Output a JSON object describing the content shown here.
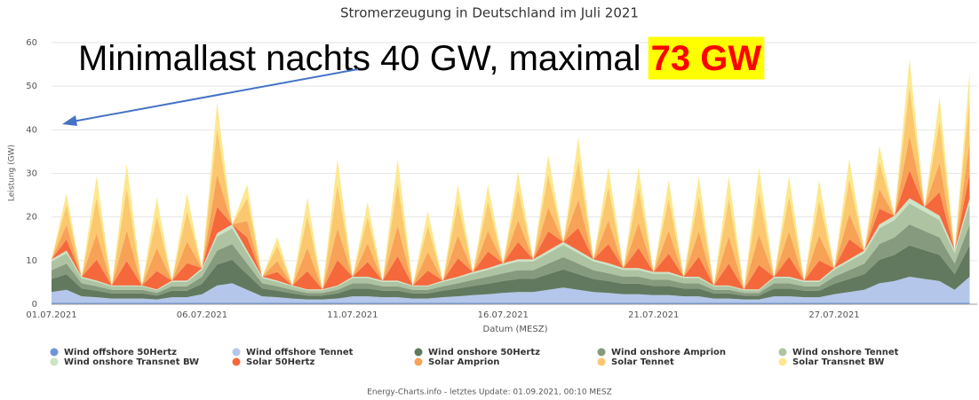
{
  "chart_data": {
    "type": "stacked_area",
    "title": "Stromerzeugung in Deutschland im Juli 2021",
    "y_label": "Leistung (GW)",
    "x_label": "Datum (MESZ)",
    "source": "Energy-Charts.info - letztes Update: 01.09.2021, 00:10 MESZ",
    "annotation": {
      "text": "Minimallast nachts 40 GW, maximal ",
      "highlight": "73 GW"
    },
    "ylim": [
      0,
      60
    ],
    "yticks": [
      0,
      10,
      20,
      30,
      40,
      50,
      60
    ],
    "grid": true,
    "legend": "bottom",
    "categories": [
      "01.07.2021",
      null,
      null,
      null,
      null,
      null,
      null,
      null,
      null,
      null,
      "06.07.2021",
      null,
      null,
      null,
      null,
      null,
      null,
      null,
      null,
      null,
      "11.07.2021",
      null,
      null,
      null,
      null,
      null,
      null,
      null,
      null,
      null,
      "16.07.2021",
      null,
      null,
      null,
      null,
      null,
      null,
      null,
      null,
      null,
      "21.07.2021",
      null,
      null,
      null,
      null,
      null,
      null,
      null,
      null,
      null,
      null,
      null,
      "27.07.2021",
      null,
      null,
      null,
      null,
      null,
      null,
      null,
      null,
      null
    ],
    "series": [
      {
        "name": "Wind offshore 50Hertz",
        "color": "#6d95d8",
        "values": [
          0.3,
          0.3,
          0.3,
          0.3,
          0.3,
          0.3,
          0.3,
          0.3,
          0.3,
          0.3,
          0.3,
          0.3,
          0.3,
          0.3,
          0.3,
          0.3,
          0.3,
          0.3,
          0.3,
          0.3,
          0.3,
          0.3,
          0.3,
          0.3,
          0.3,
          0.3,
          0.3,
          0.3,
          0.3,
          0.3,
          0.3,
          0.3,
          0.3,
          0.3,
          0.3,
          0.3,
          0.3,
          0.3,
          0.3,
          0.3,
          0.3,
          0.3,
          0.3,
          0.3,
          0.3,
          0.3,
          0.3,
          0.3,
          0.3,
          0.3,
          0.3,
          0.3,
          0.3,
          0.3,
          0.3,
          0.3,
          0.3,
          0.3,
          0.3,
          0.3,
          0.3,
          0.3
        ]
      },
      {
        "name": "Wind offshore Tennet",
        "color": "#b4c7ea",
        "values": [
          2.5,
          3,
          1.5,
          1.3,
          1,
          1,
          1,
          0.8,
          1.3,
          1.3,
          2,
          4,
          4.5,
          3,
          1.5,
          1.3,
          1,
          0.8,
          0.8,
          1,
          1.5,
          1.5,
          1.3,
          1.3,
          1,
          1,
          1.3,
          1.5,
          1.8,
          2,
          2.3,
          2.5,
          2.5,
          3,
          3.5,
          3,
          2.5,
          2.3,
          2,
          2,
          1.8,
          1.8,
          1.5,
          1.5,
          1,
          1,
          0.8,
          0.8,
          1.5,
          1.5,
          1.3,
          1.3,
          2,
          2.5,
          3,
          4.5,
          5,
          6,
          5.5,
          5,
          3,
          6
        ]
      },
      {
        "name": "Wind onshore 50Hertz",
        "color": "#62795f",
        "values": [
          3,
          3.6,
          1.8,
          1.5,
          1.2,
          1.2,
          1.2,
          0.9,
          1.5,
          1.5,
          2.4,
          4.8,
          5.4,
          3.6,
          1.8,
          1.5,
          1.2,
          0.9,
          0.9,
          1.2,
          1.8,
          1.8,
          1.5,
          1.5,
          1.2,
          1.2,
          1.5,
          1.8,
          2.1,
          2.4,
          2.7,
          3,
          3,
          3.6,
          4.2,
          3.6,
          3,
          2.7,
          2.4,
          2.4,
          2.1,
          2.1,
          1.8,
          1.8,
          1.2,
          1.2,
          0.9,
          0.9,
          1.8,
          1.8,
          1.5,
          1.5,
          2.4,
          3,
          3.6,
          5.4,
          6,
          7.2,
          6.6,
          6,
          3.6,
          7.2
        ]
      },
      {
        "name": "Wind onshore Amprion",
        "color": "#869a7d",
        "values": [
          2,
          2.4,
          1.2,
          1,
          0.8,
          0.8,
          0.8,
          0.6,
          1,
          1,
          1.6,
          3.2,
          3.6,
          2.4,
          1.2,
          1,
          0.8,
          0.6,
          0.6,
          0.8,
          1.2,
          1.2,
          1,
          1,
          0.8,
          0.8,
          1,
          1.2,
          1.4,
          1.6,
          1.8,
          2,
          2,
          2.4,
          2.8,
          2.4,
          2,
          1.8,
          1.6,
          1.6,
          1.4,
          1.4,
          1.2,
          1.2,
          0.8,
          0.8,
          0.6,
          0.6,
          1.2,
          1.2,
          1,
          1,
          1.6,
          2,
          2.4,
          3.6,
          4,
          4.8,
          4.4,
          4,
          2.4,
          4.8
        ]
      },
      {
        "name": "Wind onshore Tennet",
        "color": "#adc3a2",
        "values": [
          2,
          2.4,
          1.2,
          1,
          0.8,
          0.8,
          0.8,
          0.6,
          1,
          1,
          1.6,
          3.2,
          3.6,
          2.4,
          1.2,
          1,
          0.8,
          0.6,
          0.6,
          0.8,
          1.2,
          1.2,
          1,
          1,
          0.8,
          0.8,
          1,
          1.2,
          1.4,
          1.6,
          1.8,
          2,
          2,
          2.4,
          2.8,
          2.4,
          2,
          1.8,
          1.6,
          1.6,
          1.4,
          1.4,
          1.2,
          1.2,
          0.8,
          0.8,
          0.6,
          0.6,
          1.2,
          1.2,
          1,
          1,
          1.6,
          2,
          2.4,
          3.6,
          4,
          4.8,
          4.4,
          4,
          2.4,
          4.8
        ]
      },
      {
        "name": "Wind onshore Transnet BW",
        "color": "#cde3c6",
        "values": [
          0.5,
          0.6,
          0.3,
          0.3,
          0.2,
          0.2,
          0.2,
          0.2,
          0.3,
          0.3,
          0.4,
          0.8,
          0.9,
          0.6,
          0.3,
          0.3,
          0.2,
          0.2,
          0.2,
          0.2,
          0.3,
          0.3,
          0.3,
          0.3,
          0.2,
          0.2,
          0.3,
          0.3,
          0.4,
          0.4,
          0.5,
          0.5,
          0.5,
          0.6,
          0.7,
          0.6,
          0.5,
          0.5,
          0.4,
          0.4,
          0.4,
          0.4,
          0.3,
          0.3,
          0.2,
          0.2,
          0.2,
          0.2,
          0.3,
          0.3,
          0.3,
          0.3,
          0.4,
          0.5,
          0.6,
          0.9,
          1,
          1.2,
          1.1,
          1,
          0.6,
          1.2
        ]
      },
      {
        "name": "Solar 50Hertz",
        "color": "#f4683c",
        "values": [
          0,
          2.6,
          0,
          4.8,
          0,
          5.6,
          0,
          4.2,
          0,
          4,
          0,
          6,
          0,
          3,
          0,
          2,
          0,
          4.2,
          0,
          5.8,
          0,
          3.4,
          0,
          5.6,
          0,
          3.4,
          0,
          4.2,
          0,
          3.8,
          0,
          4,
          0,
          4.4,
          0,
          5.2,
          0,
          4.4,
          0,
          4.6,
          0,
          4.2,
          0,
          4.6,
          0,
          5,
          0,
          5.6,
          0,
          4.6,
          0,
          4.6,
          0,
          4.6,
          0,
          3.6,
          0,
          6.4,
          0,
          5.4,
          0,
          5.8
        ]
      },
      {
        "name": "Solar Amprion",
        "color": "#f7a257",
        "values": [
          0,
          3.3,
          0,
          6,
          0,
          7,
          0,
          5.3,
          0,
          5,
          0,
          7.5,
          0,
          3.8,
          0,
          2.5,
          0,
          5.3,
          0,
          7.3,
          0,
          4.3,
          0,
          7,
          0,
          4.3,
          0,
          5.3,
          0,
          4.8,
          0,
          5,
          0,
          5.5,
          0,
          6.5,
          0,
          5.5,
          0,
          5.8,
          0,
          5.3,
          0,
          5.8,
          0,
          6.3,
          0,
          7,
          0,
          5.8,
          0,
          5.8,
          0,
          5.8,
          0,
          4.5,
          0,
          8,
          0,
          6.8,
          0,
          7.3
        ]
      },
      {
        "name": "Solar Tennet",
        "color": "#fbc86f",
        "values": [
          0,
          4.6,
          0,
          8.4,
          0,
          9.8,
          0,
          7.4,
          0,
          7,
          0,
          10.5,
          0,
          5.3,
          0,
          3.5,
          0,
          7.4,
          0,
          10.2,
          0,
          6,
          0,
          9.8,
          0,
          6,
          0,
          7.4,
          0,
          6.7,
          0,
          7,
          0,
          7.7,
          0,
          9.1,
          0,
          7.7,
          0,
          8.1,
          0,
          7.4,
          0,
          8.1,
          0,
          8.8,
          0,
          9.8,
          0,
          8.1,
          0,
          8.1,
          0,
          8.1,
          0,
          6.3,
          0,
          11.2,
          0,
          9.5,
          0,
          10.2
        ]
      },
      {
        "name": "Solar Transnet BW",
        "color": "#fde88f",
        "values": [
          0,
          2.6,
          0,
          4.8,
          0,
          5.6,
          0,
          4.2,
          0,
          4,
          0,
          6,
          0,
          3,
          0,
          2,
          0,
          4.2,
          0,
          5.8,
          0,
          3.4,
          0,
          5.6,
          0,
          3.4,
          0,
          4.2,
          0,
          3.8,
          0,
          4,
          0,
          4.4,
          0,
          5.2,
          0,
          4.4,
          0,
          4.6,
          0,
          4.2,
          0,
          4.6,
          0,
          5,
          0,
          5.6,
          0,
          4.6,
          0,
          4.6,
          0,
          4.6,
          0,
          3.6,
          0,
          6.4,
          0,
          5.4,
          0,
          5.8
        ]
      }
    ]
  }
}
